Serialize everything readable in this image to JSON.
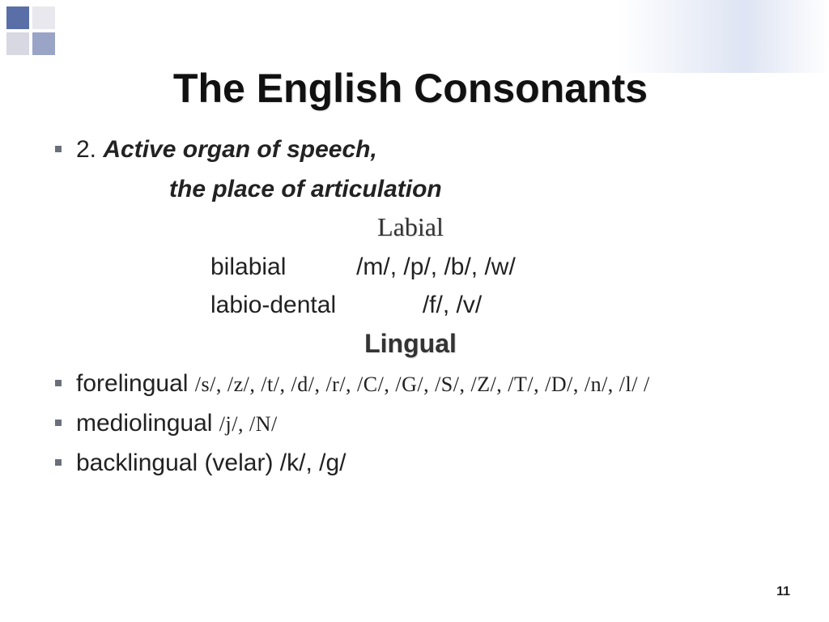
{
  "deco": {
    "colors": [
      "#5a6fa8",
      "#e8e8ee",
      "#d8d8e2",
      "#9aa4c6"
    ]
  },
  "title": "The English Consonants",
  "section": {
    "number": "2.",
    "heading_line1": "Active organ of speech,",
    "heading_line2": "the place of articulation"
  },
  "groups": {
    "labial": {
      "heading": "Labial",
      "rows": [
        {
          "label": "bilabial",
          "sounds": "/m/, /p/, /b/, /w/"
        },
        {
          "label": "labio-dental",
          "sounds": "/f/, /v/"
        }
      ]
    },
    "lingual": {
      "heading": "Lingual",
      "items": [
        {
          "label": "forelingual",
          "sounds": "/s/, /z/, /t/, /d/, /r/, /C/, /G/, /S/, /Z/, /T/, /D/, /n/, /l/ /"
        },
        {
          "label": "mediolingual",
          "sounds": "/j/, /N/"
        },
        {
          "label": "backlingual (velar)",
          "sounds": "/k/, /g/"
        }
      ]
    }
  },
  "page_number": "11",
  "style": {
    "background": "#ffffff",
    "title_fontsize": 50,
    "body_fontsize": 30,
    "serif_heading_fontsize": 32,
    "text_color": "#222222",
    "shadow_color": "rgba(120,120,120,0.3)"
  }
}
